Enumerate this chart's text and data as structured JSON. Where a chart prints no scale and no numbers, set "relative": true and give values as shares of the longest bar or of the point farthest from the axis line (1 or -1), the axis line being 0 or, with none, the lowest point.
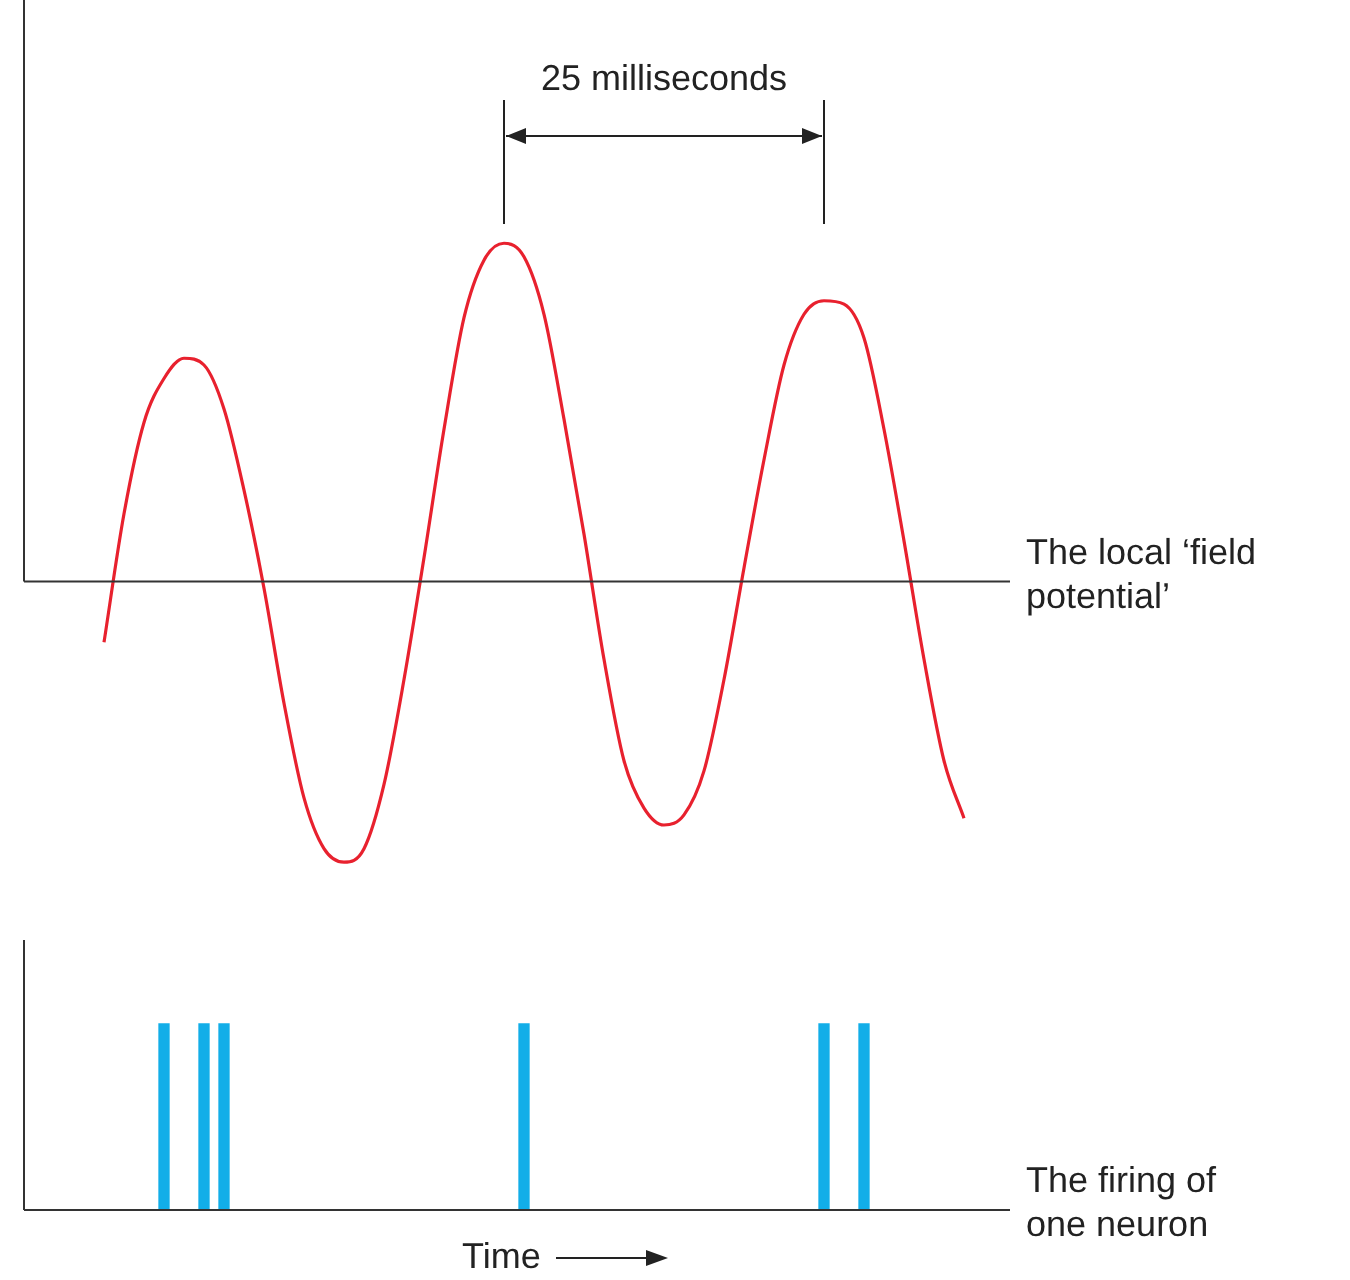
{
  "chart_data": [
    {
      "type": "line",
      "relative": true,
      "marker": "none",
      "legend": false,
      "annotations": [
        "25 milliseconds"
      ],
      "categories": [
        null,
        null,
        null,
        null,
        null,
        null,
        null,
        null,
        null,
        null,
        null,
        null,
        null,
        null,
        null,
        null,
        null,
        null,
        null,
        null,
        null,
        null,
        null,
        null,
        null,
        null,
        null,
        null,
        null,
        null,
        null,
        null,
        null,
        null,
        null,
        null,
        null,
        null,
        null,
        null,
        null,
        null,
        null,
        null,
        null,
        null,
        null,
        null,
        null,
        null
      ],
      "series": [
        {
          "name": "The local ‘field potential’",
          "color": "#e8212e",
          "values": [
            null,
            null,
            null,
            null,
            -0.18,
            0.2,
            0.47,
            0.6,
            0.66,
            0.64,
            0.51,
            0.27,
            -0.02,
            -0.36,
            -0.64,
            -0.79,
            -0.83,
            -0.79,
            -0.6,
            -0.29,
            0.07,
            0.45,
            0.78,
            0.95,
            1.0,
            0.96,
            0.79,
            0.48,
            0.14,
            -0.23,
            -0.53,
            -0.67,
            -0.72,
            -0.69,
            -0.56,
            -0.29,
            0.04,
            0.36,
            0.64,
            0.79,
            0.83,
            0.82,
            0.72,
            0.45,
            0.12,
            -0.23,
            -0.53,
            -0.7,
            null,
            null
          ]
        }
      ]
    },
    {
      "type": "bar",
      "relative": true,
      "legend": false,
      "xlabel": "Time",
      "categories": [
        null,
        null,
        null,
        null,
        null,
        null,
        null,
        null,
        null,
        null,
        null,
        null,
        null,
        null,
        null,
        null,
        null,
        null,
        null,
        null,
        null,
        null,
        null,
        null,
        null,
        null,
        null,
        null,
        null,
        null,
        null,
        null,
        null,
        null,
        null,
        null,
        null,
        null,
        null,
        null,
        null,
        null,
        null,
        null,
        null,
        null,
        null,
        null,
        null,
        null
      ],
      "series": [
        {
          "name": "The firing of one neuron",
          "color": "#12aee8",
          "values": [
            null,
            null,
            null,
            null,
            null,
            null,
            null,
            1,
            null,
            1,
            1,
            null,
            null,
            null,
            null,
            null,
            null,
            null,
            null,
            null,
            null,
            null,
            null,
            null,
            null,
            1,
            null,
            null,
            null,
            null,
            null,
            null,
            null,
            null,
            null,
            null,
            null,
            null,
            null,
            null,
            1,
            null,
            1,
            null,
            null,
            null,
            null,
            null,
            null,
            null
          ]
        }
      ]
    }
  ]
}
